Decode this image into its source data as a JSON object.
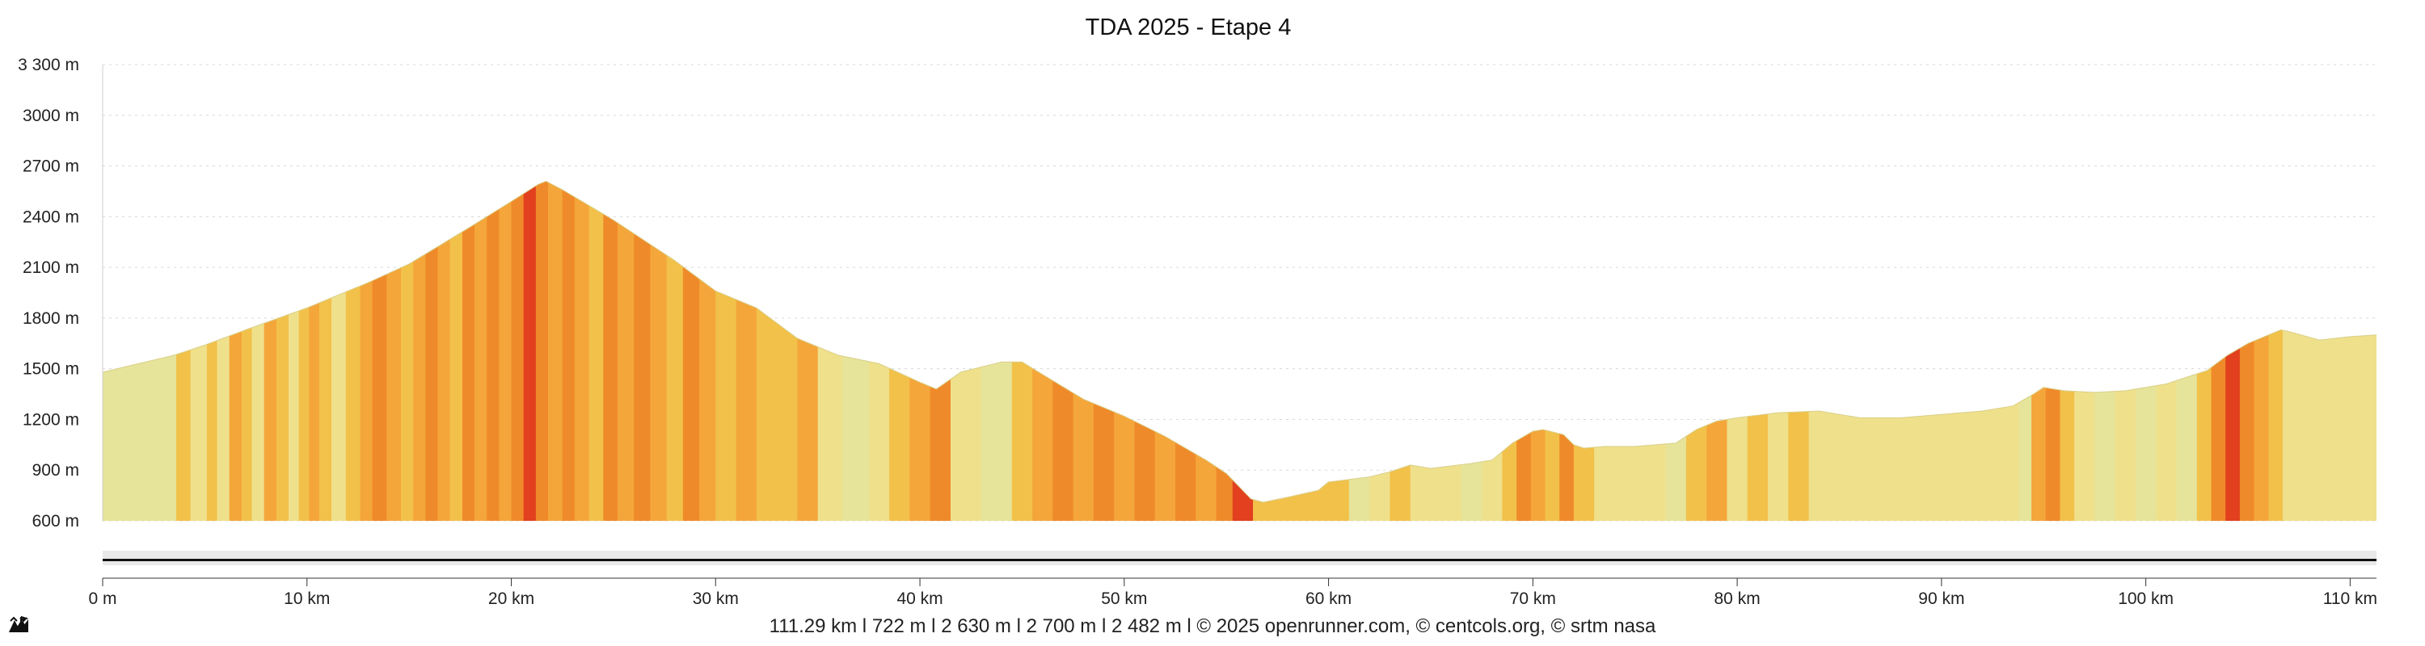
{
  "chart_data": {
    "type": "area",
    "title": "TDA 2025 - Etape 4",
    "xlabel": "",
    "ylabel": "",
    "xlim": [
      0,
      111.29
    ],
    "ylim": [
      600,
      3300
    ],
    "x_ticks": [
      0,
      10,
      20,
      30,
      40,
      50,
      60,
      70,
      80,
      90,
      100,
      110
    ],
    "x_tick_labels": [
      "0 m",
      "10 km",
      "20 km",
      "30 km",
      "40 km",
      "50 km",
      "60 km",
      "70 km",
      "80 km",
      "90 km",
      "100 km",
      "110 km"
    ],
    "y_ticks": [
      600,
      900,
      1200,
      1500,
      1800,
      2100,
      2400,
      2700,
      3000,
      3300
    ],
    "y_tick_labels": [
      "600 m",
      "900 m",
      "1200 m",
      "1500 m",
      "1800 m",
      "2100 m",
      "2400 m",
      "2700 m",
      "3000 m",
      "3 300 m"
    ],
    "grid": true,
    "profile": {
      "x": [
        0,
        3.5,
        5,
        7,
        10,
        13,
        15,
        18,
        20,
        21.3,
        21.7,
        22.5,
        25,
        28,
        30,
        32,
        34,
        36,
        38,
        40,
        40.8,
        42,
        44,
        45,
        48,
        50,
        52,
        54,
        55,
        56.2,
        56.8,
        58,
        59.5,
        60,
        62,
        63,
        64,
        65,
        67,
        68,
        69,
        70,
        70.5,
        71.5,
        72,
        72.5,
        73.5,
        75,
        77,
        78,
        79,
        80,
        82,
        84,
        86,
        88,
        90,
        92,
        93.5,
        94.5,
        95,
        96,
        97.5,
        99,
        100,
        101,
        102,
        103,
        104,
        105,
        106,
        106.6,
        107,
        108.5,
        110,
        111.29
      ],
      "y": [
        1480,
        1580,
        1640,
        1730,
        1860,
        2010,
        2120,
        2340,
        2490,
        2590,
        2610,
        2560,
        2380,
        2140,
        1960,
        1860,
        1680,
        1580,
        1530,
        1420,
        1380,
        1480,
        1540,
        1540,
        1320,
        1220,
        1100,
        960,
        880,
        730,
        710,
        740,
        780,
        830,
        860,
        890,
        930,
        910,
        940,
        960,
        1060,
        1130,
        1140,
        1110,
        1050,
        1030,
        1040,
        1040,
        1060,
        1140,
        1190,
        1210,
        1240,
        1250,
        1210,
        1210,
        1230,
        1250,
        1280,
        1350,
        1390,
        1370,
        1360,
        1370,
        1390,
        1410,
        1450,
        1490,
        1580,
        1650,
        1700,
        1730,
        1720,
        1670,
        1690,
        1700
      ]
    },
    "slope_segments": {
      "x_breaks": [
        0,
        3.6,
        4.3,
        5.1,
        5.6,
        6.2,
        6.8,
        7.3,
        7.9,
        8.5,
        9.1,
        9.6,
        10.1,
        10.6,
        11.2,
        11.9,
        12.6,
        13.2,
        13.9,
        14.6,
        15.2,
        15.8,
        16.4,
        17.0,
        17.6,
        18.2,
        18.8,
        19.4,
        20.0,
        20.6,
        21.2,
        21.8,
        22.5,
        23.1,
        23.8,
        24.5,
        25.2,
        26.0,
        26.8,
        27.6,
        28.4,
        29.2,
        30.0,
        31.0,
        32.0,
        34.0,
        35.0,
        36.2,
        37.5,
        38.5,
        39.5,
        40.5,
        41.5,
        43.0,
        44.5,
        45.5,
        46.5,
        47.5,
        48.5,
        49.5,
        50.5,
        51.5,
        52.5,
        53.5,
        54.5,
        55.3,
        56.3,
        61.0,
        62.0,
        63.0,
        64.0,
        66.5,
        67.5,
        68.5,
        69.2,
        69.9,
        70.6,
        71.3,
        72.0,
        73.0,
        76.5,
        77.5,
        78.5,
        79.5,
        80.5,
        81.5,
        82.5,
        83.5,
        93.8,
        94.4,
        95.1,
        95.8,
        96.5,
        97.5,
        98.5,
        99.5,
        100.5,
        101.5,
        102.5,
        103.2,
        103.9,
        104.6,
        105.3,
        106.0,
        106.7,
        111.29
      ],
      "levels": [
        0,
        2,
        1,
        2,
        1,
        3,
        2,
        1,
        3,
        2,
        1,
        2,
        3,
        2,
        1,
        2,
        3,
        4,
        3,
        2,
        3,
        4,
        3,
        2,
        4,
        3,
        4,
        3,
        4,
        5,
        4,
        3,
        4,
        3,
        2,
        4,
        3,
        4,
        3,
        2,
        4,
        3,
        2,
        3,
        2,
        3,
        1,
        0,
        1,
        2,
        3,
        4,
        1,
        0,
        2,
        3,
        4,
        3,
        4,
        3,
        4,
        3,
        4,
        3,
        4,
        5,
        2,
        0,
        1,
        2,
        1,
        0,
        1,
        2,
        4,
        3,
        2,
        4,
        2,
        1,
        0,
        2,
        3,
        1,
        2,
        1,
        2,
        1,
        0,
        3,
        4,
        2,
        1,
        0,
        1,
        0,
        1,
        0,
        2,
        4,
        5,
        4,
        3,
        2,
        1,
        0
      ]
    },
    "slope_colors": [
      "#e6e49a",
      "#efe08c",
      "#f2c14a",
      "#f4a63a",
      "#ef8a2a",
      "#e2401f"
    ],
    "distance_label": "111.29 km l",
    "ascent_label": "722 m l",
    "max_alt_label": "2 630 m l",
    "elevation_gain_label": "2 700 m l",
    "elevation_loss_label": "2 482 m l",
    "credits": "© 2025 openrunner.com, © centcols.org, © srtm nasa"
  }
}
